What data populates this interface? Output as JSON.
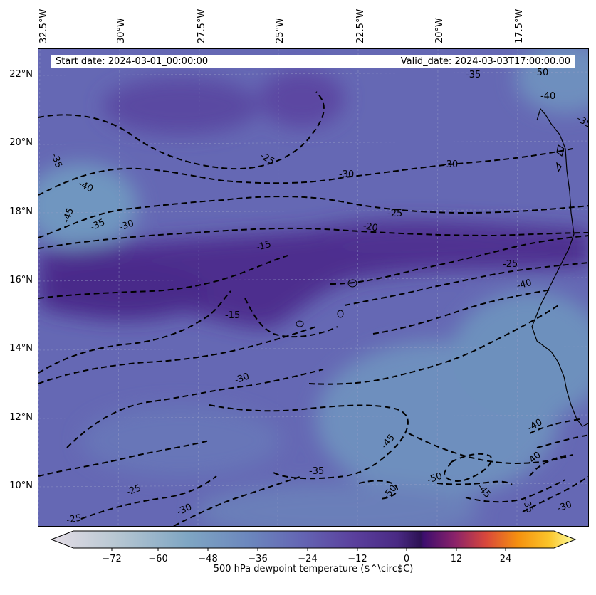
{
  "header": {
    "start_date": "Start date: 2024-03-01_00:00:00",
    "valid_date": "Valid_date: 2024-03-03T17:00:00.00"
  },
  "axes": {
    "lon_labels": [
      "32.5°W",
      "30°W",
      "27.5°W",
      "25°W",
      "22.5°W",
      "20°W",
      "17.5°W"
    ],
    "lat_labels": [
      "22°N",
      "20°N",
      "18°N",
      "16°N",
      "14°N",
      "12°N",
      "10°N"
    ]
  },
  "colorbar": {
    "title": "500 hPa dewpoint temperature ($^\\circ$C)",
    "tick_labels": [
      "−72",
      "−60",
      "−48",
      "−36",
      "−24",
      "−12",
      "0",
      "12",
      "24"
    ],
    "colormap": "dewpoint-cold-to-warm",
    "extend": "both"
  },
  "contours": {
    "style": "dashed",
    "labels": [
      "-50",
      "-40",
      "-35",
      "-35",
      "-40",
      "-45",
      "-35",
      "-30",
      "-25",
      "-30",
      "-30",
      "-25",
      "-20",
      "-15",
      "-25",
      "-40",
      "-15",
      "-30",
      "-45",
      "-35",
      "-25",
      "-30",
      "-25",
      "-50",
      "-50",
      "-45",
      "-35",
      "-40",
      "-40",
      "-30",
      "-35"
    ]
  },
  "colors": {
    "deep_purple": "#4a2a8a",
    "mid_purple": "#5b4aa4",
    "blue_violet": "#6366b2",
    "steel_blue": "#6a8fba",
    "coast": "#000000"
  }
}
